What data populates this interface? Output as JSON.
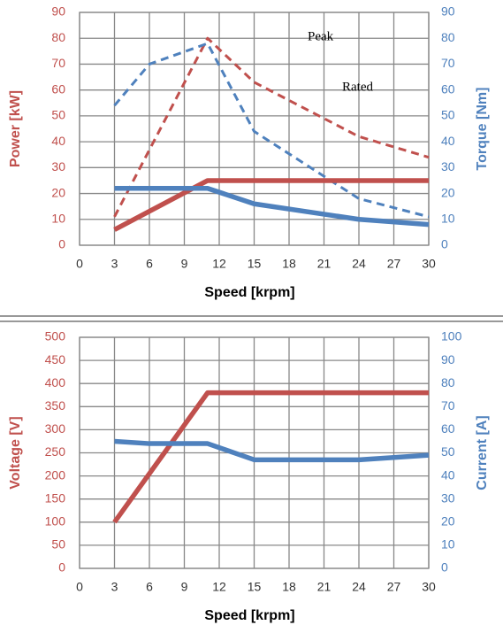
{
  "chart_data": [
    {
      "type": "line",
      "xlabel": "Speed [krpm]",
      "ylabel": "Power [kW]",
      "y2label": "Torque [Nm]",
      "xlim": [
        0,
        30
      ],
      "xticks": [
        0,
        3,
        6,
        9,
        12,
        15,
        18,
        21,
        24,
        27,
        30
      ],
      "ylim": [
        0,
        90
      ],
      "yticks": [
        0,
        10,
        20,
        30,
        40,
        50,
        60,
        70,
        80,
        90
      ],
      "y2lim": [
        0,
        90
      ],
      "y2ticks": [
        0,
        10,
        20,
        30,
        40,
        50,
        60,
        70,
        80,
        90
      ],
      "grid": true,
      "annotations": [
        "Peak",
        "Rated"
      ],
      "series": [
        {
          "color": "#c0504d",
          "dashed": true,
          "x": [
            3,
            11,
            15,
            24,
            30
          ],
          "values": [
            11,
            80,
            63,
            42,
            34
          ]
        },
        {
          "color": "#4f81bd",
          "dashed": true,
          "axis": "y2",
          "x": [
            3,
            6,
            11,
            15,
            24,
            30
          ],
          "values": [
            54,
            70,
            78,
            44,
            18,
            11
          ]
        },
        {
          "color": "#c0504d",
          "dashed": false,
          "x": [
            3,
            11,
            30
          ],
          "values": [
            6,
            25,
            25
          ]
        },
        {
          "color": "#4f81bd",
          "dashed": false,
          "axis": "y2",
          "x": [
            3,
            11,
            15,
            24,
            30
          ],
          "values": [
            22,
            22,
            16,
            10,
            8
          ]
        }
      ]
    },
    {
      "type": "line",
      "xlabel": "Speed [krpm]",
      "ylabel": "Voltage [V]",
      "y2label": "Current [A]",
      "xlim": [
        0,
        30
      ],
      "xticks": [
        0,
        3,
        6,
        9,
        12,
        15,
        18,
        21,
        24,
        27,
        30
      ],
      "ylim": [
        0,
        500
      ],
      "yticks": [
        0,
        50,
        100,
        150,
        200,
        250,
        300,
        350,
        400,
        450,
        500
      ],
      "y2lim": [
        0,
        100
      ],
      "y2ticks": [
        0,
        10,
        20,
        30,
        40,
        50,
        60,
        70,
        80,
        90,
        100
      ],
      "grid": true,
      "series": [
        {
          "color": "#c0504d",
          "dashed": false,
          "x": [
            3,
            11,
            30
          ],
          "values": [
            100,
            380,
            380
          ]
        },
        {
          "color": "#4f81bd",
          "dashed": false,
          "axis": "y2",
          "x": [
            3,
            6,
            11,
            15,
            24,
            30
          ],
          "values": [
            55,
            54,
            54,
            47,
            47,
            49
          ]
        }
      ]
    }
  ]
}
